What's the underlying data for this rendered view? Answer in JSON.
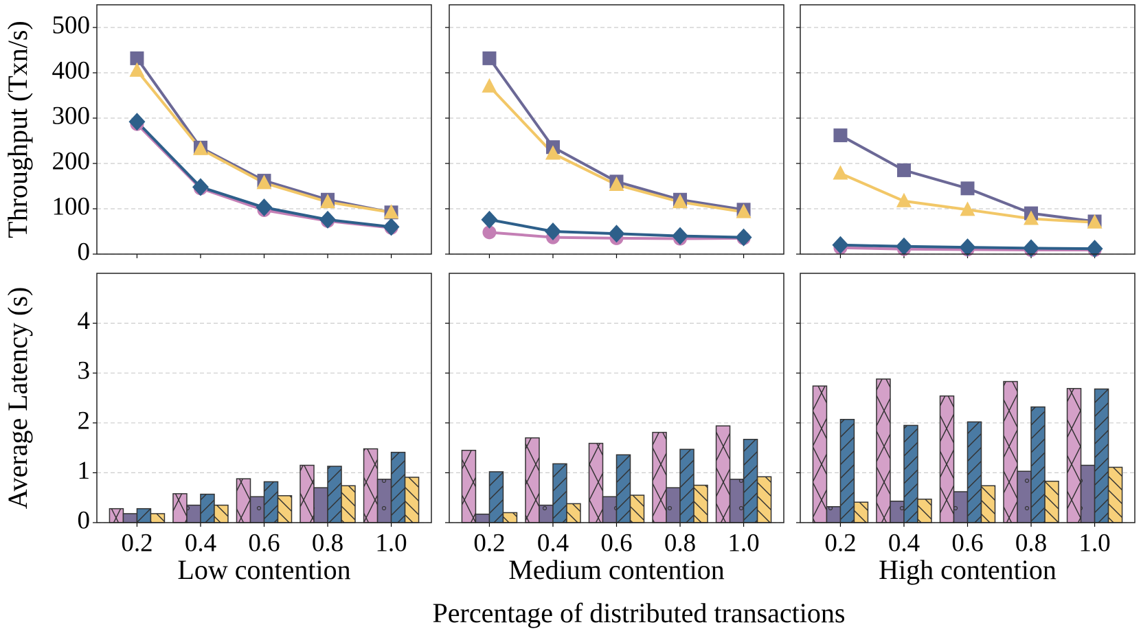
{
  "xlabel": "Percentage of distributed transactions",
  "chart_data": [
    {
      "type": "line",
      "ylabel": "Throughput (Txn/s)",
      "categories": [
        null,
        null,
        null,
        null,
        null
      ],
      "ylim": [
        0,
        550
      ],
      "yticks": [
        0,
        100,
        200,
        300,
        400,
        500
      ],
      "show_ytick_labels": true,
      "grid": true,
      "series": [
        {
          "color": "#c47fb5",
          "marker": "circle",
          "values": [
            287,
            145,
            97,
            73,
            58
          ]
        },
        {
          "color": "#6b6896",
          "marker": "square",
          "values": [
            432,
            235,
            162,
            120,
            92
          ]
        },
        {
          "color": "#2d5f8a",
          "marker": "diamond",
          "values": [
            292,
            148,
            103,
            76,
            60
          ]
        },
        {
          "color": "#f2c767",
          "marker": "triangle",
          "values": [
            405,
            232,
            157,
            115,
            92
          ]
        }
      ]
    },
    {
      "type": "line",
      "categories": [
        null,
        null,
        null,
        null,
        null
      ],
      "ylim": [
        0,
        550
      ],
      "yticks": [
        0,
        100,
        200,
        300,
        400,
        500
      ],
      "show_ytick_labels": false,
      "grid": true,
      "series": [
        {
          "color": "#c47fb5",
          "marker": "circle",
          "values": [
            48,
            37,
            35,
            34,
            35
          ]
        },
        {
          "color": "#6b6896",
          "marker": "square",
          "values": [
            432,
            236,
            160,
            120,
            98
          ]
        },
        {
          "color": "#2d5f8a",
          "marker": "diamond",
          "values": [
            76,
            50,
            45,
            40,
            37
          ]
        },
        {
          "color": "#f2c767",
          "marker": "triangle",
          "values": [
            370,
            222,
            153,
            115,
            93
          ]
        }
      ]
    },
    {
      "type": "line",
      "categories": [
        null,
        null,
        null,
        null,
        null
      ],
      "ylim": [
        0,
        550
      ],
      "yticks": [
        0,
        100,
        200,
        300,
        400,
        500
      ],
      "show_ytick_labels": false,
      "grid": true,
      "series": [
        {
          "color": "#c47fb5",
          "marker": "circle",
          "values": [
            14,
            11,
            10,
            9,
            9
          ]
        },
        {
          "color": "#6b6896",
          "marker": "square",
          "values": [
            262,
            185,
            145,
            90,
            72
          ]
        },
        {
          "color": "#2d5f8a",
          "marker": "diamond",
          "values": [
            20,
            17,
            15,
            13,
            12
          ]
        },
        {
          "color": "#f2c767",
          "marker": "triangle",
          "values": [
            178,
            117,
            98,
            78,
            70
          ]
        }
      ]
    },
    {
      "type": "bar",
      "ylabel": "Average Latency (s)",
      "xlabel": "Low contention",
      "categories": [
        "0.2",
        "0.4",
        "0.6",
        "0.8",
        "1.0"
      ],
      "ylim": [
        0,
        5
      ],
      "yticks": [
        0,
        1,
        2,
        3,
        4
      ],
      "show_ytick_labels": true,
      "grid": true,
      "series": [
        {
          "color": "#d4a0c8",
          "hatch": "cross",
          "values": [
            0.28,
            0.58,
            0.88,
            1.15,
            1.48
          ]
        },
        {
          "color": "#7a7099",
          "hatch": "dot",
          "values": [
            0.18,
            0.35,
            0.52,
            0.7,
            0.87
          ]
        },
        {
          "color": "#4a7aa3",
          "hatch": "slash",
          "values": [
            0.28,
            0.57,
            0.82,
            1.13,
            1.41
          ]
        },
        {
          "color": "#f7d07a",
          "hatch": "backslash",
          "values": [
            0.18,
            0.35,
            0.54,
            0.74,
            0.91
          ]
        }
      ]
    },
    {
      "type": "bar",
      "xlabel": "Medium contention",
      "categories": [
        "0.2",
        "0.4",
        "0.6",
        "0.8",
        "1.0"
      ],
      "ylim": [
        0,
        5
      ],
      "yticks": [
        0,
        1,
        2,
        3,
        4
      ],
      "show_ytick_labels": false,
      "grid": true,
      "series": [
        {
          "color": "#d4a0c8",
          "hatch": "cross",
          "values": [
            1.45,
            1.7,
            1.59,
            1.81,
            1.94
          ]
        },
        {
          "color": "#7a7099",
          "hatch": "dot",
          "values": [
            0.17,
            0.35,
            0.52,
            0.7,
            0.87
          ]
        },
        {
          "color": "#4a7aa3",
          "hatch": "slash",
          "values": [
            1.02,
            1.18,
            1.36,
            1.47,
            1.67
          ]
        },
        {
          "color": "#f7d07a",
          "hatch": "backslash",
          "values": [
            0.2,
            0.38,
            0.55,
            0.75,
            0.92
          ]
        }
      ]
    },
    {
      "type": "bar",
      "xlabel": "High contention",
      "categories": [
        "0.2",
        "0.4",
        "0.6",
        "0.8",
        "1.0"
      ],
      "ylim": [
        0,
        5
      ],
      "yticks": [
        0,
        1,
        2,
        3,
        4
      ],
      "show_ytick_labels": false,
      "grid": true,
      "series": [
        {
          "color": "#d4a0c8",
          "hatch": "cross",
          "values": [
            2.74,
            2.88,
            2.54,
            2.83,
            2.69
          ]
        },
        {
          "color": "#7a7099",
          "hatch": "dot",
          "values": [
            0.32,
            0.43,
            0.62,
            1.03,
            1.15
          ]
        },
        {
          "color": "#4a7aa3",
          "hatch": "slash",
          "values": [
            2.07,
            1.95,
            2.02,
            2.32,
            2.68
          ]
        },
        {
          "color": "#f7d07a",
          "hatch": "backslash",
          "values": [
            0.41,
            0.47,
            0.74,
            0.83,
            1.11
          ]
        }
      ]
    }
  ]
}
